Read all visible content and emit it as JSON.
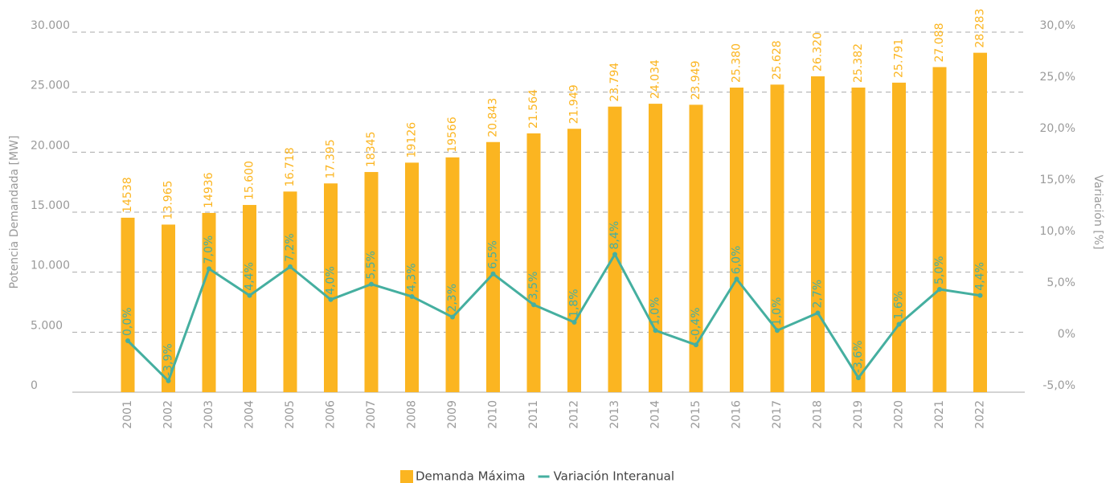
{
  "chart_data": {
    "type": "bar",
    "categories": [
      "2001",
      "2002",
      "2003",
      "2004",
      "2005",
      "2006",
      "2007",
      "2008",
      "2009",
      "2010",
      "2011",
      "2012",
      "2013",
      "2014",
      "2015",
      "2016",
      "2017",
      "2018",
      "2019",
      "2020",
      "2021",
      "2022"
    ],
    "series": [
      {
        "name": "Demanda Máxima",
        "type": "bar",
        "color": "#fbb521",
        "values": [
          14538,
          13965,
          14936,
          15600,
          16718,
          17395,
          18345,
          19126,
          19566,
          20843,
          21564,
          21949,
          23794,
          24034,
          23949,
          25380,
          25628,
          26320,
          25382,
          25791,
          27088,
          28283
        ],
        "value_labels": [
          "14538",
          "13.965",
          "14936",
          "15.600",
          "16.718",
          "17.395",
          "18345",
          "19126",
          "19566",
          "20.843",
          "21.564",
          "21.949",
          "23.794",
          "24.034",
          "23.949",
          "25.380",
          "25.628",
          "26.320",
          "25.382",
          "25.791",
          "27.088",
          "28.283"
        ]
      },
      {
        "name": "Variación Interanual",
        "type": "line",
        "axis": "y2",
        "color": "#45afa0",
        "values": [
          0.0,
          -3.9,
          7.0,
          4.4,
          7.2,
          4.0,
          5.5,
          4.3,
          2.3,
          6.5,
          3.5,
          1.8,
          8.4,
          1.0,
          -0.4,
          6.0,
          1.0,
          2.7,
          -3.6,
          1.6,
          5.0,
          4.4
        ],
        "value_labels": [
          "0,0%",
          "-3,9%",
          "7,0%",
          "4,4%",
          "7,2%",
          "4,0%",
          "5,5%",
          "4,3%",
          "2,3%",
          "6,5%",
          "3,5%",
          "1,8%",
          "8,4%",
          "1,0%",
          "-0,4%",
          "6,0%",
          "1,0%",
          "2,7%",
          "-3,6%",
          "1,6%",
          "5,0%",
          "4,4%"
        ]
      }
    ],
    "ylabel": "Potencia Demandada [MW]",
    "y2label": "Variación [%]",
    "ylim": [
      0,
      30000
    ],
    "yticks": [
      0,
      {
        "value": 5000,
        "label": "5.000"
      },
      {
        "value": 10000,
        "label": "10.000"
      },
      {
        "value": 15000,
        "label": "15.000"
      },
      {
        "value": 20000,
        "label": "20.000"
      },
      {
        "value": 25000,
        "label": "25.000"
      },
      {
        "value": 30000,
        "label": "30.000"
      }
    ],
    "y2lim": [
      -5,
      30
    ],
    "y2ticks": [
      {
        "value": -5,
        "label": "-5,0%"
      },
      {
        "value": 0,
        "label": "0%"
      },
      {
        "value": 5,
        "label": "5,0%"
      },
      {
        "value": 10,
        "label": "10,0%"
      },
      {
        "value": 15,
        "label": "15,0%"
      },
      {
        "value": 20,
        "label": "20,0%"
      },
      {
        "value": 25,
        "label": "25,0%"
      },
      {
        "value": 30,
        "label": "30,0%"
      }
    ],
    "grid": true,
    "legend": "bottom"
  }
}
